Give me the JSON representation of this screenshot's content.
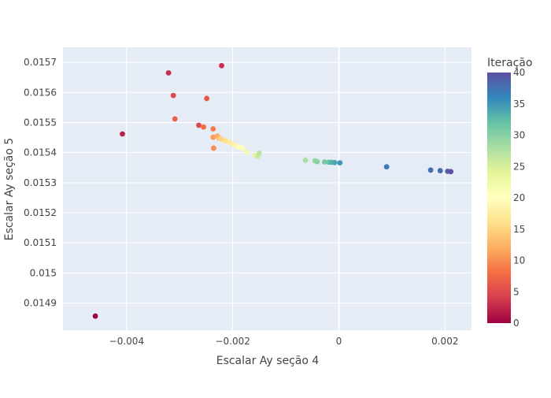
{
  "chart_data": {
    "type": "scatter",
    "xlabel": "Escalar Ay seção 4",
    "ylabel": "Escalar Ay seção 5",
    "xlim": [
      -0.0052,
      0.0025
    ],
    "ylim": [
      0.01481,
      0.01575
    ],
    "x_ticks": [
      {
        "value": -0.004,
        "label": "−0.004"
      },
      {
        "value": -0.002,
        "label": "−0.002"
      },
      {
        "value": 0,
        "label": "0"
      },
      {
        "value": 0.002,
        "label": "0.002"
      }
    ],
    "y_ticks": [
      {
        "value": 0.0149,
        "label": "0.0149"
      },
      {
        "value": 0.015,
        "label": "0.015"
      },
      {
        "value": 0.0151,
        "label": "0.0151"
      },
      {
        "value": 0.0152,
        "label": "0.0152"
      },
      {
        "value": 0.0153,
        "label": "0.0153"
      },
      {
        "value": 0.0154,
        "label": "0.0154"
      },
      {
        "value": 0.0155,
        "label": "0.0155"
      },
      {
        "value": 0.0156,
        "label": "0.0156"
      },
      {
        "value": 0.0157,
        "label": "0.0157"
      }
    ],
    "grid": true,
    "zero_line_x": true,
    "plot_background": "#E5ECF6",
    "colorbar": {
      "title": "Iteração",
      "min": 0,
      "max": 40,
      "ticks": [
        "0",
        "5",
        "10",
        "15",
        "20",
        "25",
        "30",
        "35",
        "40"
      ],
      "colorscale": "Spectral",
      "stops": [
        "#9e0142",
        "#d53e4f",
        "#f46d43",
        "#fdae61",
        "#fee08b",
        "#ffffbf",
        "#e6f598",
        "#abdda4",
        "#66c2a5",
        "#3288bd",
        "#5e4fa2"
      ]
    },
    "points": [
      {
        "x": -0.00459,
        "y": 0.014857,
        "iter": 0
      },
      {
        "x": -0.00408,
        "y": 0.015462,
        "iter": 2
      },
      {
        "x": -0.00321,
        "y": 0.015665,
        "iter": 3
      },
      {
        "x": -0.00221,
        "y": 0.015689,
        "iter": 3
      },
      {
        "x": -0.00312,
        "y": 0.01559,
        "iter": 5
      },
      {
        "x": -0.00249,
        "y": 0.01558,
        "iter": 6
      },
      {
        "x": -0.00264,
        "y": 0.015491,
        "iter": 5
      },
      {
        "x": -0.00309,
        "y": 0.015512,
        "iter": 7
      },
      {
        "x": -0.00255,
        "y": 0.015485,
        "iter": 8
      },
      {
        "x": -0.00237,
        "y": 0.015479,
        "iter": 9
      },
      {
        "x": -0.00236,
        "y": 0.015415,
        "iter": 10
      },
      {
        "x": -0.00237,
        "y": 0.015451,
        "iter": 11
      },
      {
        "x": -0.00229,
        "y": 0.015455,
        "iter": 12
      },
      {
        "x": -0.00226,
        "y": 0.015448,
        "iter": 13
      },
      {
        "x": -0.00222,
        "y": 0.015445,
        "iter": 15
      },
      {
        "x": -0.00214,
        "y": 0.01544,
        "iter": 16
      },
      {
        "x": -0.00207,
        "y": 0.015435,
        "iter": 17
      },
      {
        "x": -0.002,
        "y": 0.015428,
        "iter": 18
      },
      {
        "x": -0.00193,
        "y": 0.015422,
        "iter": 19
      },
      {
        "x": -0.00187,
        "y": 0.015417,
        "iter": 20
      },
      {
        "x": -0.00182,
        "y": 0.015415,
        "iter": 21
      },
      {
        "x": -0.00173,
        "y": 0.015402,
        "iter": 22
      },
      {
        "x": -0.00158,
        "y": 0.015391,
        "iter": 24
      },
      {
        "x": -0.00153,
        "y": 0.015388,
        "iter": 26
      },
      {
        "x": -0.0015,
        "y": 0.015398,
        "iter": 27
      },
      {
        "x": -0.00063,
        "y": 0.015375,
        "iter": 28
      },
      {
        "x": -0.00045,
        "y": 0.015373,
        "iter": 29
      },
      {
        "x": -0.00041,
        "y": 0.01537,
        "iter": 30
      },
      {
        "x": -0.00027,
        "y": 0.015369,
        "iter": 31
      },
      {
        "x": -0.00019,
        "y": 0.015368,
        "iter": 32
      },
      {
        "x": -0.00014,
        "y": 0.015368,
        "iter": 33
      },
      {
        "x": -8e-05,
        "y": 0.015367,
        "iter": 34
      },
      {
        "x": 2e-05,
        "y": 0.015366,
        "iter": 35
      },
      {
        "x": 0.0009,
        "y": 0.015353,
        "iter": 37
      },
      {
        "x": 0.00173,
        "y": 0.015342,
        "iter": 38
      },
      {
        "x": 0.00191,
        "y": 0.01534,
        "iter": 38
      },
      {
        "x": 0.00205,
        "y": 0.015338,
        "iter": 39
      },
      {
        "x": 0.00211,
        "y": 0.015337,
        "iter": 40
      }
    ]
  }
}
